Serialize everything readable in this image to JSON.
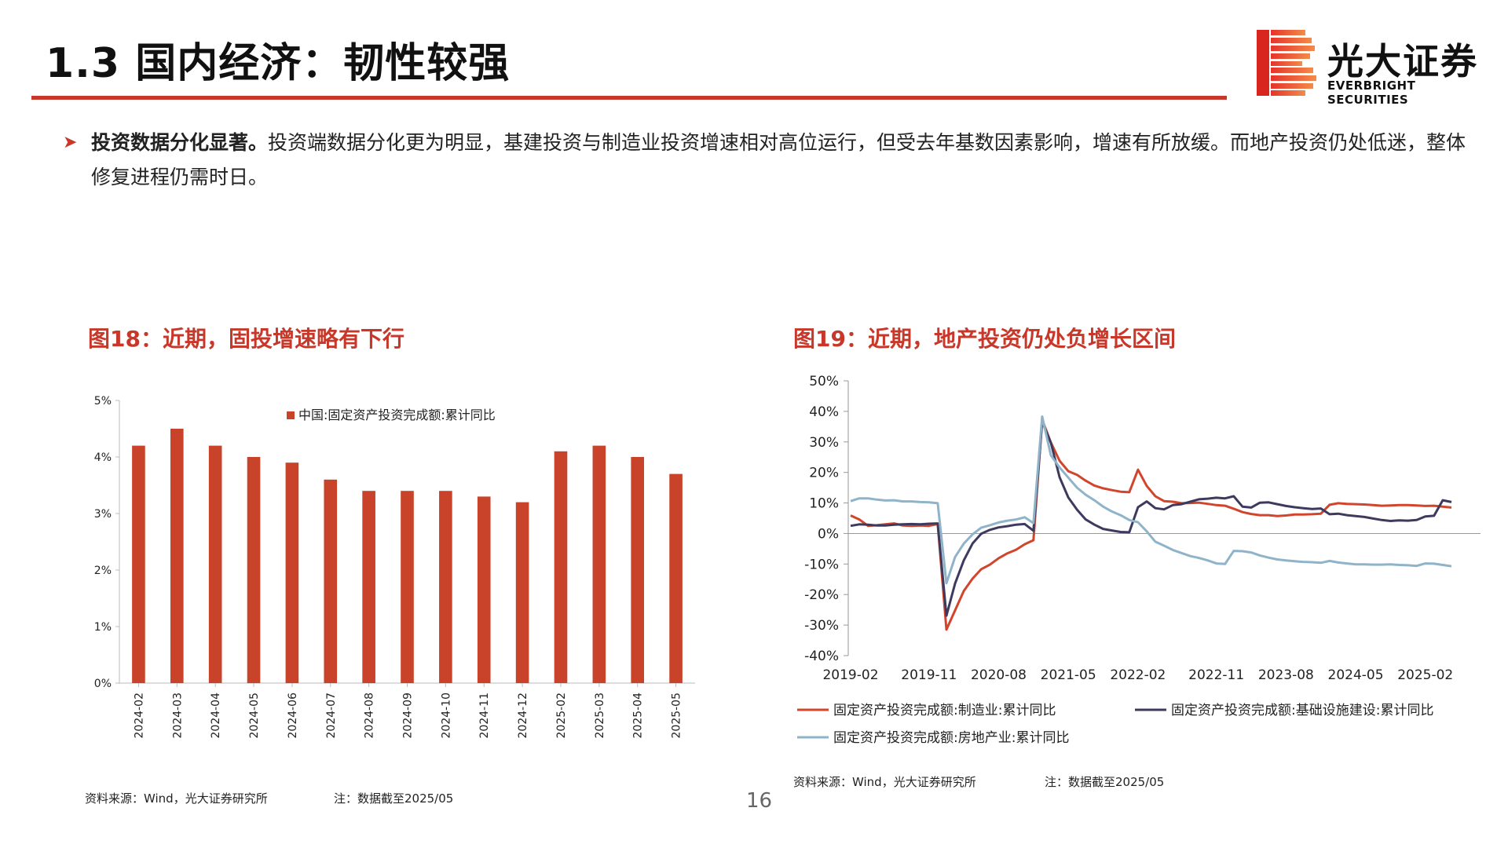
{
  "header": {
    "title": "1.3 国内经济：韧性较强",
    "logo_cn": "光大证券",
    "logo_en": "EVERBRIGHT SECURITIES"
  },
  "bullet": {
    "lead": "投资数据分化显著。",
    "text": "投资端数据分化更为明显，基建投资与制造业投资增速相对高位运行，但受去年基数因素影响，增速有所放缓。而地产投资仍处低迷，整体修复进程仍需时日。"
  },
  "fig18": {
    "title": "图18：近期，固投增速略有下行",
    "source": "资料来源：Wind，光大证券研究所",
    "note": "注：数据截至2025/05"
  },
  "fig19": {
    "title": "图19：近期，地产投资仍处负增长区间",
    "source": "资料来源：Wind，光大证券研究所",
    "note": "注：数据截至2025/05"
  },
  "page_number": "16",
  "colors": {
    "accent": "#c8382a",
    "bar": "#c8432a",
    "manufacturing": "#d2452d",
    "infrastructure": "#3e3a5e",
    "realestate": "#8fb3c9"
  },
  "chart_data": [
    {
      "type": "bar",
      "categories": [
        "2024-02",
        "2024-03",
        "2024-04",
        "2024-05",
        "2024-06",
        "2024-07",
        "2024-08",
        "2024-09",
        "2024-10",
        "2024-11",
        "2024-12",
        "2025-02",
        "2025-03",
        "2025-04",
        "2025-05"
      ],
      "series": [
        {
          "name": "中国:固定资产投资完成额:累计同比",
          "values": [
            4.2,
            4.5,
            4.2,
            4.0,
            3.9,
            3.6,
            3.4,
            3.4,
            3.4,
            3.3,
            3.2,
            4.1,
            4.2,
            4.0,
            3.7
          ]
        }
      ],
      "yticks": [
        "0%",
        "1%",
        "2%",
        "3%",
        "4%",
        "5%"
      ],
      "ylim": [
        0,
        5
      ],
      "legend": "top"
    },
    {
      "type": "line",
      "x": [
        "2019-02",
        "2019-03",
        "2019-04",
        "2019-05",
        "2019-06",
        "2019-07",
        "2019-08",
        "2019-09",
        "2019-10",
        "2019-11",
        "2019-12",
        "2020-02",
        "2020-03",
        "2020-04",
        "2020-05",
        "2020-06",
        "2020-07",
        "2020-08",
        "2020-09",
        "2020-10",
        "2020-11",
        "2020-12",
        "2021-02",
        "2021-03",
        "2021-04",
        "2021-05",
        "2021-06",
        "2021-07",
        "2021-08",
        "2021-09",
        "2021-10",
        "2021-11",
        "2021-12",
        "2022-02",
        "2022-03",
        "2022-04",
        "2022-05",
        "2022-06",
        "2022-07",
        "2022-08",
        "2022-09",
        "2022-10",
        "2022-11",
        "2022-12",
        "2023-02",
        "2023-03",
        "2023-04",
        "2023-05",
        "2023-06",
        "2023-07",
        "2023-08",
        "2023-09",
        "2023-10",
        "2023-11",
        "2023-12",
        "2024-02",
        "2024-03",
        "2024-04",
        "2024-05",
        "2024-06",
        "2024-07",
        "2024-08",
        "2024-09",
        "2024-10",
        "2024-11",
        "2024-12",
        "2025-02",
        "2025-03",
        "2025-04",
        "2025-05"
      ],
      "xticks": [
        "2019-02",
        "2019-11",
        "2020-08",
        "2021-05",
        "2022-02",
        "2022-11",
        "2023-08",
        "2024-05",
        "2025-02"
      ],
      "yticks": [
        "-40%",
        "-30%",
        "-20%",
        "-10%",
        "0%",
        "10%",
        "20%",
        "30%",
        "40%",
        "50%"
      ],
      "ylim": [
        -40,
        50
      ],
      "legend": "bottom",
      "series": [
        {
          "name": "固定资产投资完成额:制造业:累计同比",
          "color": "#d2452d",
          "values": [
            5.9,
            4.6,
            2.5,
            2.7,
            3.0,
            3.3,
            2.6,
            2.5,
            2.6,
            2.5,
            3.1,
            -31.5,
            -25.2,
            -18.8,
            -14.8,
            -11.7,
            -10.2,
            -8.1,
            -6.5,
            -5.3,
            -3.5,
            -2.2,
            37.3,
            29.8,
            23.8,
            20.4,
            19.2,
            17.3,
            15.7,
            14.8,
            14.2,
            13.7,
            13.5,
            20.9,
            15.6,
            12.2,
            10.6,
            10.4,
            9.9,
            10.0,
            10.1,
            9.7,
            9.3,
            9.1,
            8.1,
            7.0,
            6.4,
            6.0,
            6.0,
            5.7,
            5.9,
            6.2,
            6.2,
            6.3,
            6.5,
            9.4,
            9.9,
            9.7,
            9.6,
            9.5,
            9.3,
            9.1,
            9.2,
            9.3,
            9.3,
            9.2,
            9.0,
            9.1,
            8.8,
            8.5
          ]
        },
        {
          "name": "固定资产投资完成额:基础设施建设:累计同比",
          "color": "#3e3a5e",
          "values": [
            2.5,
            3.0,
            2.9,
            2.6,
            2.6,
            2.9,
            3.0,
            3.1,
            3.0,
            3.2,
            3.3,
            -26.9,
            -16.4,
            -8.8,
            -3.3,
            -0.1,
            1.2,
            2.0,
            2.4,
            2.9,
            3.1,
            0.9,
            36.6,
            29.7,
            18.4,
            11.8,
            7.8,
            4.6,
            2.9,
            1.5,
            1.0,
            0.5,
            0.4,
            8.6,
            10.5,
            8.3,
            7.9,
            9.3,
            9.6,
            10.4,
            11.2,
            11.4,
            11.7,
            11.5,
            12.2,
            8.8,
            8.5,
            10.1,
            10.2,
            9.6,
            9.0,
            8.6,
            8.3,
            8.0,
            8.2,
            6.3,
            6.5,
            6.0,
            5.7,
            5.4,
            4.9,
            4.4,
            4.1,
            4.3,
            4.2,
            4.4,
            5.6,
            5.8,
            10.9,
            10.3
          ]
        },
        {
          "name": "固定资产投资完成额:房地产业:累计同比",
          "color": "#8fb3c9",
          "values": [
            10.6,
            11.5,
            11.5,
            11.1,
            10.8,
            10.9,
            10.5,
            10.5,
            10.3,
            10.2,
            9.9,
            -16.3,
            -7.7,
            -3.3,
            -0.3,
            1.9,
            2.7,
            3.6,
            4.2,
            4.6,
            5.3,
            3.4,
            38.3,
            25.6,
            21.6,
            18.3,
            15.0,
            12.7,
            10.9,
            8.8,
            7.2,
            6.0,
            4.4,
            3.7,
            0.7,
            -2.7,
            -4.0,
            -5.4,
            -6.4,
            -7.4,
            -8.0,
            -8.8,
            -9.8,
            -10.0,
            -5.7,
            -5.8,
            -6.2,
            -7.2,
            -7.9,
            -8.5,
            -8.8,
            -9.1,
            -9.3,
            -9.4,
            -9.6,
            -9.0,
            -9.5,
            -9.8,
            -10.1,
            -10.1,
            -10.2,
            -10.2,
            -10.1,
            -10.3,
            -10.4,
            -10.6,
            -9.8,
            -9.9,
            -10.3,
            -10.7
          ]
        }
      ]
    }
  ]
}
